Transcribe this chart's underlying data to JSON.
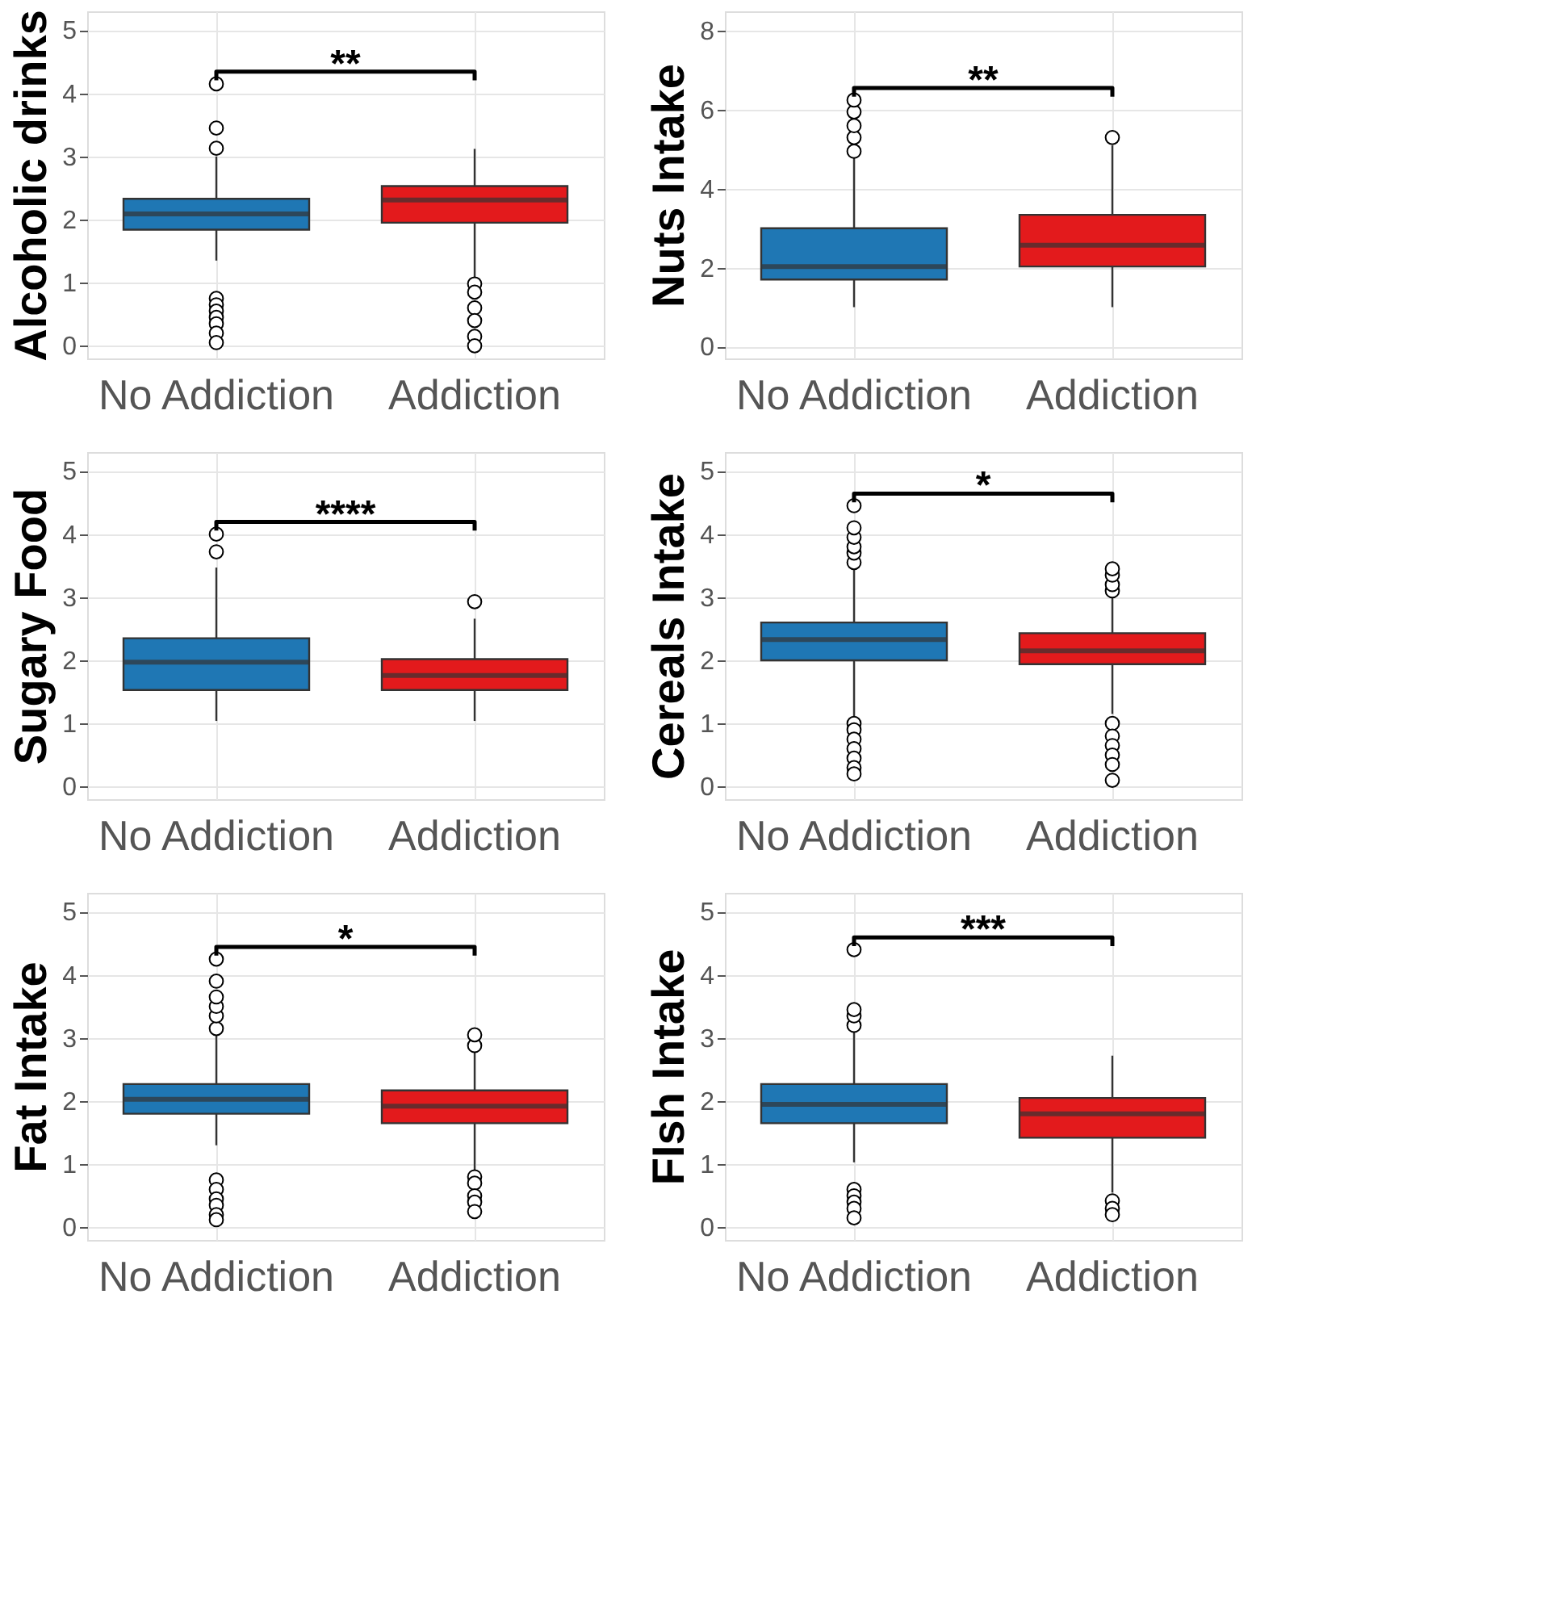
{
  "chart_data": [
    {
      "type": "box",
      "ylabel": "Alcoholic drinks",
      "categories": [
        "No Addiction",
        "Addiction"
      ],
      "colors": [
        "#1f77b4",
        "#e31a1c"
      ],
      "ylim": [
        -0.2,
        5.3
      ],
      "yticks": [
        0,
        1,
        2,
        3,
        4,
        5
      ],
      "grid": true,
      "annotations": [
        "**"
      ],
      "boxes": [
        {
          "low": 1.35,
          "q1": 1.84,
          "median": 2.09,
          "q3": 2.33,
          "high": 3.0,
          "outliers": [
            4.15,
            3.45,
            3.13,
            0.75,
            0.65,
            0.55,
            0.45,
            0.35,
            0.2,
            0.05
          ]
        },
        {
          "low": 1.05,
          "q1": 1.95,
          "median": 2.31,
          "q3": 2.53,
          "high": 3.12,
          "outliers": [
            0.98,
            0.85,
            0.6,
            0.4,
            0.15,
            0.0
          ]
        }
      ]
    },
    {
      "type": "box",
      "ylabel": "Nuts Intake",
      "categories": [
        "No Addiction",
        "Addiction"
      ],
      "colors": [
        "#1f77b4",
        "#e31a1c"
      ],
      "ylim": [
        -0.3,
        8.5
      ],
      "yticks": [
        0,
        2,
        4,
        6,
        8
      ],
      "grid": true,
      "annotations": [
        "**"
      ],
      "boxes": [
        {
          "low": 1.0,
          "q1": 1.7,
          "median": 2.03,
          "q3": 3.0,
          "high": 4.8,
          "outliers": [
            4.95,
            5.3,
            5.6,
            5.95,
            6.25
          ]
        },
        {
          "low": 1.0,
          "q1": 2.03,
          "median": 2.57,
          "q3": 3.34,
          "high": 5.1,
          "outliers": [
            5.3
          ]
        }
      ]
    },
    {
      "type": "box",
      "ylabel": "Sugary Food",
      "categories": [
        "No Addiction",
        "Addiction"
      ],
      "colors": [
        "#1f77b4",
        "#e31a1c"
      ],
      "ylim": [
        -0.2,
        5.3
      ],
      "yticks": [
        0,
        1,
        2,
        3,
        4,
        5
      ],
      "grid": true,
      "annotations": [
        "****"
      ],
      "boxes": [
        {
          "low": 1.04,
          "q1": 1.53,
          "median": 1.97,
          "q3": 2.35,
          "high": 3.47,
          "outliers": [
            3.72,
            4.0
          ]
        },
        {
          "low": 1.04,
          "q1": 1.53,
          "median": 1.76,
          "q3": 2.02,
          "high": 2.66,
          "outliers": [
            2.93
          ]
        }
      ]
    },
    {
      "type": "box",
      "ylabel": "Cereals Intake",
      "categories": [
        "No Addiction",
        "Addiction"
      ],
      "colors": [
        "#1f77b4",
        "#e31a1c"
      ],
      "ylim": [
        -0.2,
        5.3
      ],
      "yticks": [
        0,
        1,
        2,
        3,
        4,
        5
      ],
      "grid": true,
      "annotations": [
        "*"
      ],
      "boxes": [
        {
          "low": 1.08,
          "q1": 2.0,
          "median": 2.33,
          "q3": 2.6,
          "high": 3.47,
          "outliers": [
            3.55,
            3.7,
            3.8,
            3.95,
            4.1,
            4.45,
            1.0,
            0.9,
            0.75,
            0.6,
            0.45,
            0.3,
            0.2
          ]
        },
        {
          "low": 1.15,
          "q1": 1.94,
          "median": 2.15,
          "q3": 2.43,
          "high": 3.05,
          "outliers": [
            3.1,
            3.2,
            3.35,
            3.45,
            1.0,
            0.8,
            0.65,
            0.5,
            0.35,
            0.1
          ]
        }
      ]
    },
    {
      "type": "box",
      "ylabel": "Fat Intake",
      "categories": [
        "No Addiction",
        "Addiction"
      ],
      "colors": [
        "#1f77b4",
        "#e31a1c"
      ],
      "ylim": [
        -0.2,
        5.3
      ],
      "yticks": [
        0,
        1,
        2,
        3,
        4,
        5
      ],
      "grid": true,
      "annotations": [
        "*"
      ],
      "boxes": [
        {
          "low": 1.3,
          "q1": 1.8,
          "median": 2.03,
          "q3": 2.27,
          "high": 3.1,
          "outliers": [
            3.15,
            3.35,
            3.5,
            3.65,
            3.9,
            4.25,
            0.75,
            0.6,
            0.45,
            0.35,
            0.2,
            0.12
          ]
        },
        {
          "low": 0.86,
          "q1": 1.65,
          "median": 1.92,
          "q3": 2.17,
          "high": 2.86,
          "outliers": [
            2.88,
            3.05,
            0.8,
            0.7,
            0.5,
            0.4,
            0.25
          ]
        }
      ]
    },
    {
      "type": "box",
      "ylabel": "FIsh Intake",
      "categories": [
        "No Addiction",
        "Addiction"
      ],
      "colors": [
        "#1f77b4",
        "#e31a1c"
      ],
      "ylim": [
        -0.2,
        5.3
      ],
      "yticks": [
        0,
        1,
        2,
        3,
        4,
        5
      ],
      "grid": true,
      "annotations": [
        "***"
      ],
      "boxes": [
        {
          "low": 1.03,
          "q1": 1.65,
          "median": 1.95,
          "q3": 2.27,
          "high": 3.15,
          "outliers": [
            3.2,
            3.35,
            3.45,
            4.4,
            0.6,
            0.5,
            0.4,
            0.3,
            0.15
          ]
        },
        {
          "low": 0.55,
          "q1": 1.42,
          "median": 1.8,
          "q3": 2.05,
          "high": 2.72,
          "outliers": [
            0.42,
            0.3,
            0.2
          ]
        }
      ]
    }
  ]
}
